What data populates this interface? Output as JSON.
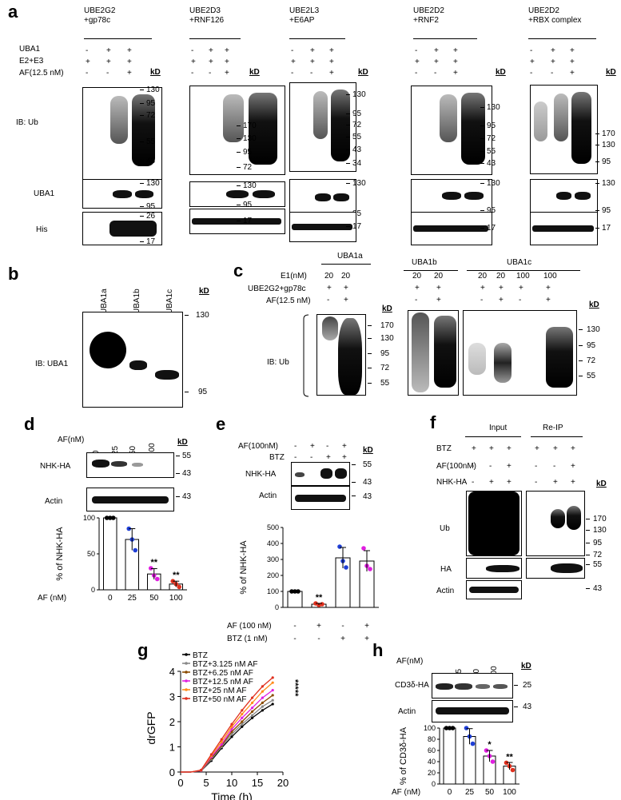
{
  "panels": {
    "a": {
      "label": "a",
      "row_labels": [
        "UBA1",
        "E2+E3",
        "AF(12.5 nM)"
      ],
      "blot_labels": [
        "IB: Ub",
        "UBA1",
        "His"
      ],
      "subpanels": [
        {
          "title1": "UBE2G2",
          "title2": "+gp78c",
          "signs": [
            [
              "-",
              "+",
              "+"
            ],
            [
              "+",
              "+",
              "+"
            ],
            [
              "-",
              "-",
              "+"
            ]
          ],
          "markers_ub": [
            "130",
            "95",
            "72",
            "55",
            "43"
          ],
          "markers_uba1": [
            "130",
            "95"
          ],
          "markers_his": [
            "26",
            "17"
          ]
        },
        {
          "title1": "UBE2D3",
          "title2": "+RNF126",
          "signs": [
            [
              "-",
              "+",
              "+"
            ],
            [
              "+",
              "+",
              "+"
            ],
            [
              "-",
              "-",
              "+"
            ]
          ],
          "markers_ub": [
            "170",
            "130",
            "95",
            "72"
          ],
          "markers_uba1": [
            "130",
            "95"
          ],
          "markers_his": [
            "17"
          ]
        },
        {
          "title1": "UBE2L3",
          "title2": "+E6AP",
          "signs": [
            [
              "-",
              "+",
              "+"
            ],
            [
              "+",
              "+",
              "+"
            ],
            [
              "-",
              "-",
              "+"
            ]
          ],
          "markers_ub": [
            "130",
            "95",
            "72",
            "55",
            "43",
            "34"
          ],
          "markers_uba1": [
            "130",
            "95"
          ],
          "markers_his": [
            "17"
          ]
        },
        {
          "title1": "UBE2D2",
          "title2": "+RNF2",
          "signs": [
            [
              "-",
              "+",
              "+"
            ],
            [
              "+",
              "+",
              "+"
            ],
            [
              "-",
              "-",
              "+"
            ]
          ],
          "markers_ub": [
            "130",
            "95",
            "72",
            "55",
            "43"
          ],
          "markers_uba1": [
            "130",
            "95"
          ],
          "markers_his": [
            "17"
          ]
        },
        {
          "title1": "UBE2D2",
          "title2": "+RBX complex",
          "signs": [
            [
              "-",
              "+",
              "+"
            ],
            [
              "+",
              "+",
              "+"
            ],
            [
              "-",
              "-",
              "+"
            ]
          ],
          "markers_ub": [
            "170",
            "130",
            "95"
          ],
          "markers_uba1": [
            "130",
            "95"
          ],
          "markers_his": [
            "17"
          ]
        }
      ],
      "kd": "kD"
    },
    "b": {
      "label": "b",
      "lanes": [
        "UBA1a",
        "UBA1b",
        "UBA1c"
      ],
      "blot_label": "IB: UBA1",
      "kd": "kD",
      "markers": [
        "130",
        "95"
      ]
    },
    "c": {
      "label": "c",
      "groups": [
        "UBA1a",
        "UBA1b",
        "UBA1c"
      ],
      "row_labels": [
        "E1(nM)",
        "UBE2G2+gp78c",
        "AF(12.5 nM)"
      ],
      "e1_values": [
        "20",
        "20",
        "20",
        "20",
        "20",
        "20",
        "100",
        "100"
      ],
      "ube_signs": [
        "+",
        "+",
        "+",
        "+",
        "+",
        "+",
        "+",
        "+"
      ],
      "af_signs": [
        "-",
        "+",
        "-",
        "+",
        "-",
        "+",
        "-",
        "+"
      ],
      "blot_label": "IB: Ub",
      "kd": "kD",
      "markers_left": [
        "170",
        "130",
        "95",
        "72",
        "55"
      ],
      "markers_right": [
        "130",
        "95",
        "72",
        "55"
      ]
    },
    "d": {
      "label": "d",
      "af_label": "AF(nM)",
      "af_values": [
        "0",
        "25",
        "50",
        "100"
      ],
      "kd": "kD",
      "blots": [
        "NHK-HA",
        "Actin"
      ],
      "markers": [
        "55",
        "43",
        "43"
      ],
      "sig": [
        "**",
        "**"
      ],
      "xaxis_label": "AF (nM)"
    },
    "e": {
      "label": "e",
      "row_labels": [
        "AF(100nM)",
        "BTZ"
      ],
      "af_signs": [
        "-",
        "+",
        "-",
        "+"
      ],
      "btz_signs": [
        "-",
        "-",
        "+",
        "+"
      ],
      "kd": "kD",
      "blots": [
        "NHK-HA",
        "Actin"
      ],
      "markers": [
        "55",
        "43",
        "43"
      ],
      "sig": [
        "**"
      ],
      "x_rows": [
        "AF (100 nM)",
        "BTZ (1 nM)"
      ],
      "x_af": [
        "-",
        "+",
        "-",
        "+"
      ],
      "x_btz": [
        "-",
        "-",
        "+",
        "+"
      ]
    },
    "f": {
      "label": "f",
      "groups": [
        "Input",
        "Re-IP"
      ],
      "row_labels": [
        "BTZ",
        "AF(100nM)",
        "NHK-HA"
      ],
      "btz_signs": [
        "+",
        "+",
        "+",
        "+",
        "+",
        "+"
      ],
      "af_signs": [
        "-",
        "-",
        "+",
        "-",
        "-",
        "+"
      ],
      "nhk_signs": [
        "-",
        "+",
        "+",
        "-",
        "+",
        "+"
      ],
      "blots": [
        "Ub",
        "HA",
        "Actin"
      ],
      "kd": "kD",
      "markers": [
        "170",
        "130",
        "95",
        "72",
        "55",
        "43"
      ]
    },
    "g": {
      "label": "g"
    },
    "h": {
      "label": "h",
      "af_label": "AF(nM)",
      "af_values": [
        "0",
        "25",
        "50",
        "100"
      ],
      "kd": "kD",
      "blots": [
        "CD3δ-HA",
        "Actin"
      ],
      "markers": [
        "25",
        "43"
      ],
      "sig": [
        "*",
        "**"
      ],
      "xaxis_label": "AF (nM)"
    }
  },
  "chart_data": [
    {
      "type": "bar",
      "panel": "d",
      "categories": [
        "0",
        "25",
        "50",
        "100"
      ],
      "values": [
        100,
        70,
        22,
        8
      ],
      "points": [
        [
          100,
          100,
          100
        ],
        [
          85,
          70,
          55
        ],
        [
          30,
          20,
          15
        ],
        [
          12,
          8,
          4
        ]
      ],
      "point_colors": [
        "#000000",
        "#1f3fd6",
        "#e01ee0",
        "#e0301e"
      ],
      "ylabel": "% of NHK-HA",
      "xlabel": "AF (nM)",
      "ylim": [
        0,
        100
      ],
      "yticks": [
        "0",
        "50",
        "100"
      ],
      "annotations": [
        "",
        "",
        "**",
        "**"
      ]
    },
    {
      "type": "bar",
      "panel": "e",
      "categories": [
        "1",
        "2",
        "3",
        "4"
      ],
      "values": [
        100,
        20,
        310,
        290
      ],
      "points": [
        [
          100,
          100,
          100
        ],
        [
          25,
          15,
          20
        ],
        [
          380,
          290,
          250
        ],
        [
          370,
          260,
          240
        ]
      ],
      "point_colors": [
        "#000000",
        "#e0301e",
        "#1f3fd6",
        "#e01ee0"
      ],
      "ylabel": "% of NHK-HA",
      "ylim": [
        0,
        500
      ],
      "yticks": [
        "0",
        "100",
        "200",
        "300",
        "400",
        "500"
      ],
      "annotations": [
        "",
        "**",
        "",
        ""
      ]
    },
    {
      "type": "line",
      "panel": "g",
      "xlabel": "Time (h)",
      "ylabel": "drGFP",
      "xlim": [
        0,
        20
      ],
      "ylim": [
        0,
        4
      ],
      "xticks": [
        "0",
        "5",
        "10",
        "15",
        "20"
      ],
      "yticks": [
        "0",
        "1",
        "2",
        "3",
        "4"
      ],
      "x": [
        0,
        2,
        4,
        6,
        8,
        10,
        12,
        14,
        16,
        18
      ],
      "series": [
        {
          "name": "BTZ",
          "color": "#000000",
          "values": [
            0,
            0,
            0.05,
            0.45,
            0.95,
            1.4,
            1.8,
            2.15,
            2.45,
            2.7
          ]
        },
        {
          "name": "BTZ+3.125 nM AF",
          "color": "#888888",
          "values": [
            0,
            0,
            0.05,
            0.5,
            1.0,
            1.5,
            1.9,
            2.25,
            2.6,
            2.85
          ]
        },
        {
          "name": "BTZ+6.25 nM AF",
          "color": "#8a4a00",
          "values": [
            0,
            0,
            0.06,
            0.55,
            1.05,
            1.6,
            2.0,
            2.4,
            2.75,
            3.05
          ]
        },
        {
          "name": "BTZ+12.5 nM AF",
          "color": "#e01ee0",
          "values": [
            0,
            0,
            0.06,
            0.6,
            1.1,
            1.7,
            2.15,
            2.55,
            2.95,
            3.25
          ]
        },
        {
          "name": "BTZ+25 nM AF",
          "color": "#ff8c1a",
          "values": [
            0,
            0,
            0.07,
            0.65,
            1.2,
            1.8,
            2.3,
            2.75,
            3.2,
            3.55
          ]
        },
        {
          "name": "BTZ+50 nM AF",
          "color": "#e0301e",
          "values": [
            0,
            0,
            0.08,
            0.7,
            1.3,
            1.9,
            2.45,
            2.95,
            3.4,
            3.75
          ]
        }
      ],
      "annotations": [
        "*****"
      ]
    },
    {
      "type": "bar",
      "panel": "h",
      "categories": [
        "0",
        "25",
        "50",
        "100"
      ],
      "values": [
        100,
        85,
        50,
        32
      ],
      "points": [
        [
          100,
          100,
          100
        ],
        [
          100,
          85,
          72
        ],
        [
          60,
          50,
          40
        ],
        [
          38,
          32,
          25
        ]
      ],
      "point_colors": [
        "#000000",
        "#1f3fd6",
        "#e01ee0",
        "#e0301e"
      ],
      "ylabel": "% of CD3δ-HA",
      "xlabel": "AF (nM)",
      "ylim": [
        0,
        100
      ],
      "yticks": [
        "0",
        "20",
        "40",
        "60",
        "80",
        "100"
      ],
      "annotations": [
        "",
        "",
        "*",
        "**"
      ]
    }
  ]
}
